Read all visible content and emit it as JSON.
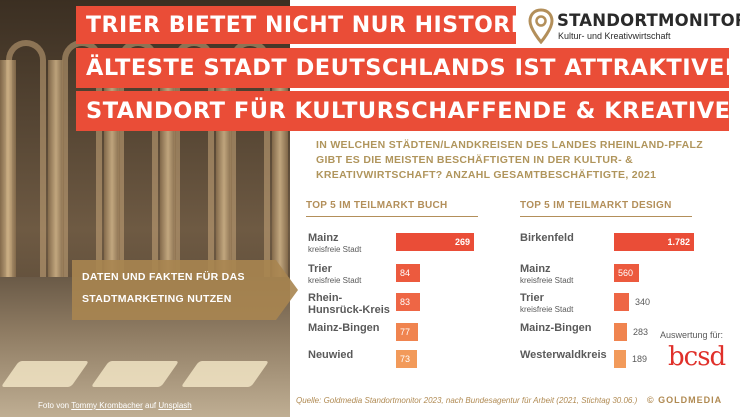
{
  "headline": {
    "line1": "TRIER BIETET NICHT NUR HISTORIE:",
    "line2": "ÄLTESTE STADT DEUTSCHLANDS IST ATTRAKTIVER",
    "line3": "STANDORT FÜR KULTURSCHAFFENDE & KREATIVE"
  },
  "logo": {
    "brand": "STANDORTMONITOR",
    "subtitle": "Kultur- und Kreativwirtschaft",
    "icon": "map-pin-icon"
  },
  "question": "IN WELCHEN STÄDTEN/LANDKREISEN DES LANDES RHEINLAND-PFALZ GIBT ES DIE MEISTEN BESCHÄFTIGTEN IN DER KULTUR- & KREATIVWIRTSCHAFT? ANZAHL GESAMTBESCHÄFTIGTE, 2021",
  "callout": {
    "line1": "DATEN UND FAKTEN FÜR DAS",
    "line2": "STADTMARKETING NUTZEN"
  },
  "photo_credit": {
    "prefix": "Foto von ",
    "author": "Tommy Krombacher",
    "middle": " auf ",
    "site": "Unsplash"
  },
  "evaluation": {
    "label": "Auswertung für:",
    "brand": "bcsd"
  },
  "source": "Quelle: Goldmedia Standortmonitor 2023, nach Bundesagentur für Arbeit (2021, Stichtag 30.06.)",
  "copyright": "© GOLDMEDIA",
  "colors": {
    "accent": "#ea4d37",
    "gold": "#b38f5a",
    "bar_colors": [
      "#ea4d37",
      "#ec5a3e",
      "#ee6645",
      "#f0844f",
      "#f29a5a"
    ]
  },
  "chart_data": [
    {
      "type": "bar",
      "orientation": "horizontal",
      "title": "TOP 5 IM TEILMARKT BUCH",
      "categories": [
        "Mainz",
        "Trier",
        "Rhein-Hunsrück-Kreis",
        "Mainz-Bingen",
        "Neuwied"
      ],
      "labels": [
        {
          "name": "Mainz",
          "sub": "kreisfreie Stadt"
        },
        {
          "name": "Trier",
          "sub": "kreisfreie Stadt"
        },
        {
          "name": "Rhein-",
          "name2": "Hunsrück-Kreis"
        },
        {
          "name": "Mainz-Bingen"
        },
        {
          "name": "Neuwied"
        }
      ],
      "values": [
        269,
        84,
        83,
        77,
        73
      ],
      "value_labels": [
        "269",
        "84",
        "83",
        "77",
        "73"
      ]
    },
    {
      "type": "bar",
      "orientation": "horizontal",
      "title": "TOP 5 IM TEILMARKT DESIGN",
      "categories": [
        "Birkenfeld",
        "Mainz",
        "Trier",
        "Mainz-Bingen",
        "Westerwaldkreis"
      ],
      "labels": [
        {
          "name": "Birkenfeld"
        },
        {
          "name": "Mainz",
          "sub": "kreisfreie Stadt"
        },
        {
          "name": "Trier",
          "sub": "kreisfreie Stadt"
        },
        {
          "name": "Mainz-Bingen"
        },
        {
          "name": "Westerwaldkreis"
        }
      ],
      "values": [
        1782,
        560,
        340,
        283,
        189
      ],
      "value_labels": [
        "1.782",
        "560",
        "340",
        "283",
        "189"
      ]
    }
  ]
}
